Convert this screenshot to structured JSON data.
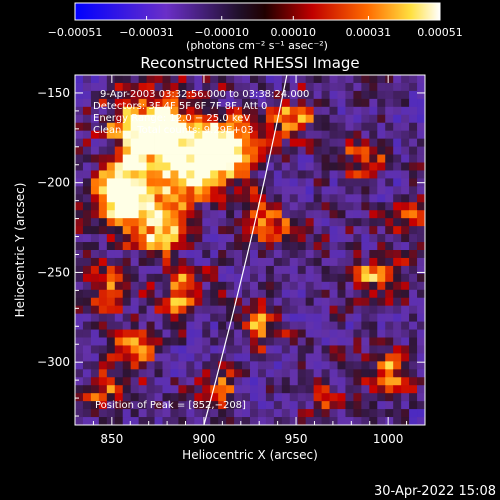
{
  "chart_data": {
    "type": "heatmap",
    "title": "Reconstructed RHESSI Image",
    "xlabel": "Heliocentric X (arcsec)",
    "ylabel": "Heliocentric Y (arcsec)",
    "xlim": [
      830,
      1020
    ],
    "ylim": [
      -335,
      -140
    ],
    "x_ticks": [
      850,
      900,
      950,
      1000
    ],
    "y_ticks": [
      -150,
      -200,
      -250,
      -300
    ],
    "x_tick_labels": [
      "850",
      "900",
      "950",
      "1000"
    ],
    "y_tick_labels": [
      "−150",
      "−200",
      "−250",
      "−300"
    ],
    "colorbar": {
      "range": [
        -0.00051,
        0.00051
      ],
      "ticks": [
        -0.00051,
        -0.00031,
        -0.0001,
        0.0001,
        0.00031,
        0.00051
      ],
      "tick_labels": [
        "−0.00051",
        "−0.00031",
        "−0.00010",
        "0.00010",
        "0.00031",
        "0.00051"
      ],
      "unit_label": "(photons cm⁻² s⁻¹ asec⁻²)",
      "colors": [
        "#0000ff",
        "#7030c0",
        "#000000",
        "#c00000",
        "#ff6000",
        "#ffe040",
        "#ffffff"
      ]
    },
    "annotations": {
      "time": "9-Apr-2003 03:32:56.000 to 03:38:24.000",
      "detectors": "Detectors: 3F 4F 5F 6F 7F 8F, Att 0",
      "energy": "Energy Range: 12.0 − 25.0 keV",
      "clean": "Clean     Total counts: 9.29E+03",
      "peak": "Position of Peak = [852,−208]"
    },
    "limb_line": {
      "x": [
        900,
        945
      ],
      "y": [
        -335,
        -140
      ]
    },
    "peak_position": [
      852,
      -208
    ]
  },
  "footer": {
    "timestamp": "30-Apr-2022 15:08"
  }
}
